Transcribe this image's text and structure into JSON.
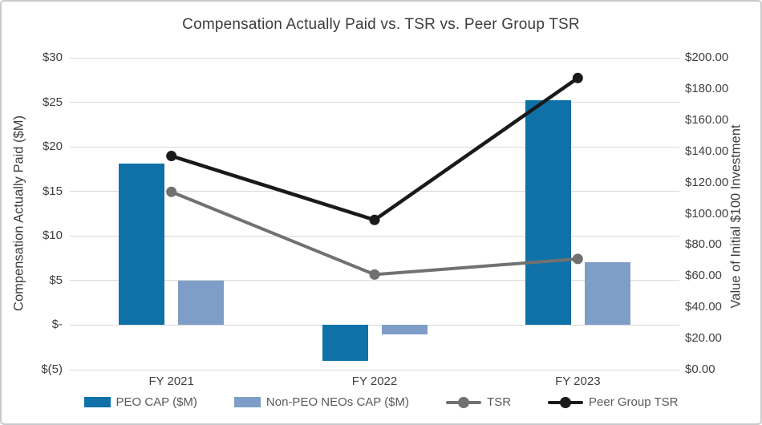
{
  "chart": {
    "title": "Compensation Actually Paid vs. TSR vs. Peer Group TSR",
    "left_axis_title": "Compensation Actually Paid ($M)",
    "right_axis_title": "Value of Initial $100 Investment"
  },
  "colors": {
    "peo_bar": "#0f71a8",
    "non_peo_bar": "#7e9ec7",
    "tsr_line": "#717171",
    "peer_tsr_line": "#1a1a1a",
    "gridline": "#d9d9d9",
    "axis_text": "#404040",
    "legend_text": "#595959",
    "frame_border": "#c8cacc"
  },
  "chart_data": {
    "type": "combo-bar-line",
    "title": "Compensation Actually Paid vs. TSR vs. Peer Group TSR",
    "categories": [
      "FY 2021",
      "FY 2022",
      "FY 2023"
    ],
    "bar_series": [
      {
        "name": "PEO CAP ($M)",
        "axis": "left",
        "color": "#0f71a8",
        "values": [
          18.1,
          -4.0,
          25.2
        ]
      },
      {
        "name": "Non-PEO NEOs CAP ($M)",
        "axis": "left",
        "color": "#7e9ec7",
        "values": [
          5.0,
          -1.0,
          7.1
        ]
      }
    ],
    "line_series": [
      {
        "name": "TSR",
        "axis": "right",
        "color": "#717171",
        "stroke_width": 4,
        "values": [
          114,
          61,
          71
        ]
      },
      {
        "name": "Peer Group TSR",
        "axis": "right",
        "color": "#1a1a1a",
        "stroke_width": 4.5,
        "values": [
          137,
          96,
          187
        ]
      }
    ],
    "left_axis": {
      "label": "Compensation Actually Paid ($M)",
      "min": -5,
      "max": 30,
      "step": 5,
      "tick_values": [
        30,
        25,
        20,
        15,
        10,
        5,
        0,
        -5
      ],
      "tick_labels": [
        "$30",
        "$25",
        "$20",
        "$15",
        "$10",
        "$5",
        "$-",
        "$(5)"
      ]
    },
    "right_axis": {
      "label": "Value of Initial $100 Investment",
      "min": 0,
      "max": 200,
      "step": 20,
      "tick_values": [
        200,
        180,
        160,
        140,
        120,
        100,
        80,
        60,
        40,
        20,
        0
      ],
      "tick_labels": [
        "$200.00",
        "$180.00",
        "$160.00",
        "$140.00",
        "$120.00",
        "$100.00",
        "$80.00",
        "$60.00",
        "$40.00",
        "$20.00",
        "$0.00"
      ]
    },
    "grid": true,
    "legend_position": "bottom"
  }
}
